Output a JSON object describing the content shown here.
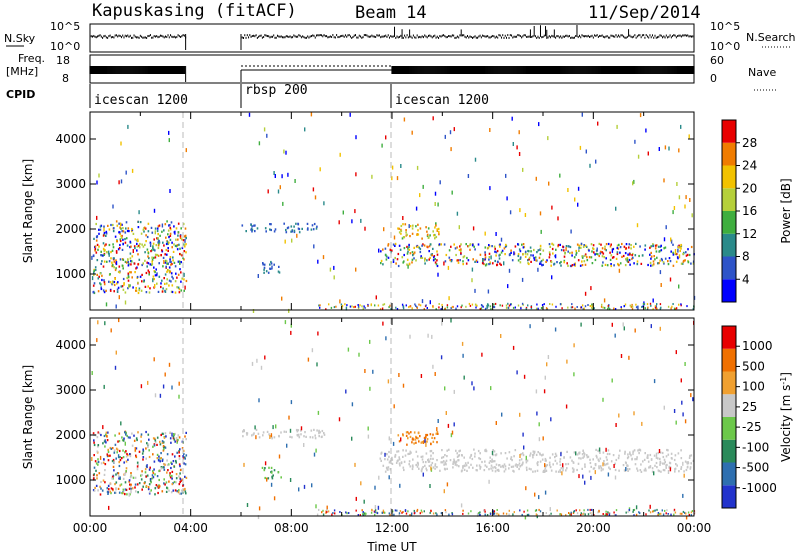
{
  "header": {
    "station": "Kapuskasing (fitACF)",
    "beam": "Beam 14",
    "date": "11/Sep/2014"
  },
  "status_panels": {
    "nsky_label": "N.Sky",
    "nsky_ticks": [
      "10^5",
      "10^0"
    ],
    "nsearch_label": "N.Search",
    "nsearch_ticks": [
      "10^5",
      "10^0"
    ],
    "freq_label_1": "Freq.",
    "freq_label_2": "[MHz]",
    "freq_ticks": [
      "18",
      "8"
    ],
    "nave_label": "Nave",
    "nave_ticks": [
      "60",
      "0"
    ],
    "cpid_label": "CPID",
    "modes": [
      {
        "name": "icescan 1200",
        "start": 0,
        "end": 6
      },
      {
        "name": "rbsp 200",
        "start": 6,
        "end": 12
      },
      {
        "name": "icescan 1200",
        "start": 12,
        "end": 24
      }
    ]
  },
  "chart_data": [
    {
      "type": "heatmap",
      "name": "power",
      "xlabel": "",
      "ylabel": "Slant Range [km]",
      "xlim": [
        0,
        24
      ],
      "ylim": [
        200,
        4600
      ],
      "yticks": [
        "4000",
        "3000",
        "2000",
        "1000"
      ],
      "colorbar_label": "Power [dB]",
      "colorbar_ticks": [
        "28",
        "24",
        "20",
        "16",
        "12",
        "8",
        "4"
      ],
      "colors": [
        "#0000ff",
        "#2e54c8",
        "#2a8a8a",
        "#3fae3f",
        "#b5cf3a",
        "#f2c200",
        "#f07c00",
        "#e80000"
      ],
      "features": [
        {
          "t": [
            0.1,
            3.8
          ],
          "range": [
            600,
            2200
          ],
          "level": "mixed"
        },
        {
          "t": [
            6.0,
            9.0
          ],
          "range": [
            1950,
            2150
          ],
          "level": "low"
        },
        {
          "t": [
            6.8,
            7.6
          ],
          "range": [
            1050,
            1300
          ],
          "level": "low"
        },
        {
          "t": [
            11.5,
            24.0
          ],
          "range": [
            1200,
            1700
          ],
          "level": "mixed"
        },
        {
          "t": [
            12.2,
            13.9
          ],
          "range": [
            1800,
            2150
          ],
          "level": "high"
        }
      ]
    },
    {
      "type": "heatmap",
      "name": "velocity",
      "xlabel": "Time UT",
      "ylabel": "Slant Range [km]",
      "xlim": [
        0,
        24
      ],
      "ylim": [
        200,
        4600
      ],
      "xticks": [
        "00:00",
        "04:00",
        "08:00",
        "12:00",
        "16:00",
        "20:00",
        "00:00"
      ],
      "yticks": [
        "4000",
        "3000",
        "2000",
        "1000"
      ],
      "colorbar_label": "Velocity [m s^-1]",
      "colorbar_ticks": [
        "1000",
        "500",
        "100",
        "25",
        "-25",
        "-100",
        "-500",
        "-1000"
      ],
      "colors": [
        "#2233cc",
        "#2e6fb0",
        "#2a8a5a",
        "#6cc84a",
        "#c8c8c8",
        "#f0a030",
        "#f07000",
        "#e80000"
      ],
      "features": [
        {
          "t": [
            0.1,
            3.8
          ],
          "range": [
            700,
            2100
          ],
          "level": "mixed"
        },
        {
          "t": [
            6.0,
            9.3
          ],
          "range": [
            1950,
            2150
          ],
          "level": "gray"
        },
        {
          "t": [
            6.8,
            7.6
          ],
          "range": [
            1050,
            1300
          ],
          "level": "green"
        },
        {
          "t": [
            11.5,
            24.0
          ],
          "range": [
            1200,
            1700
          ],
          "level": "gray"
        },
        {
          "t": [
            12.2,
            13.9
          ],
          "range": [
            1800,
            2150
          ],
          "level": "orange"
        }
      ]
    }
  ]
}
